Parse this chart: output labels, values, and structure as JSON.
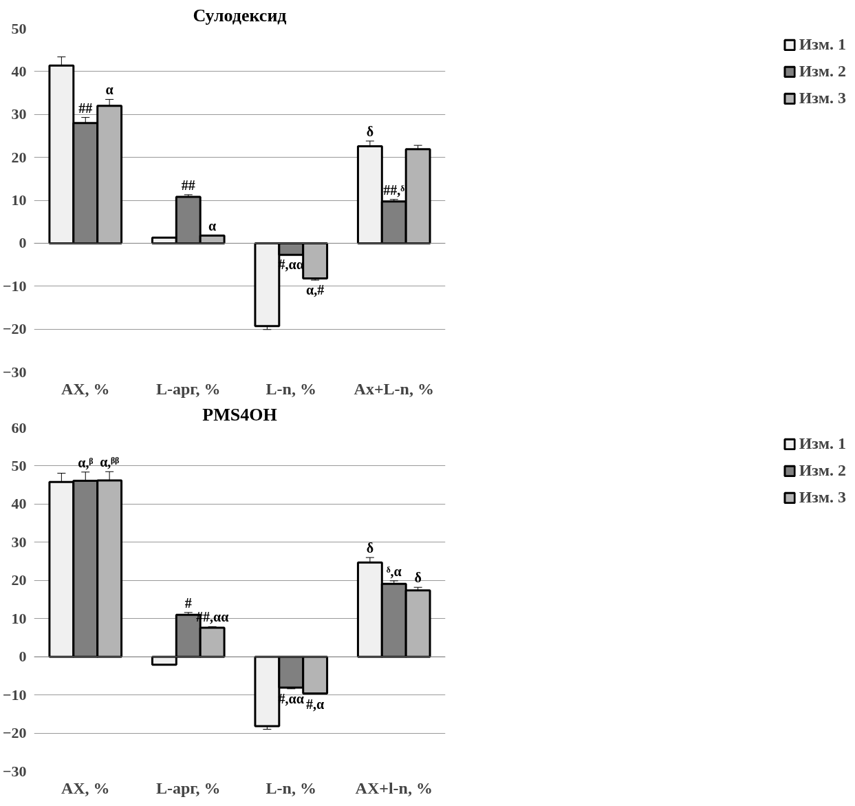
{
  "chart_data": [
    {
      "type": "bar",
      "title": "Сулодексид",
      "categories": [
        "AX, %",
        "L-арг, %",
        "L-n, %",
        "Ax+L-n, %"
      ],
      "series": [
        {
          "name": "Изм. 1",
          "color": "#f0f0f0",
          "values": [
            41.4,
            1.3,
            -19.3,
            22.6
          ],
          "errors": [
            2.0,
            null,
            0.8,
            1.2
          ]
        },
        {
          "name": "Изм. 2",
          "color": "#808080",
          "values": [
            28.0,
            10.8,
            -2.7,
            9.7
          ],
          "errors": [
            1.3,
            0.5,
            null,
            0.5
          ]
        },
        {
          "name": "Изм. 3",
          "color": "#b4b4b4",
          "values": [
            32.0,
            1.8,
            -8.2,
            21.9
          ],
          "errors": [
            1.5,
            null,
            0.4,
            0.9
          ]
        }
      ],
      "ylim": [
        -30,
        50
      ],
      "yticks": [
        -30,
        -20,
        -10,
        0,
        10,
        20,
        30,
        40,
        50
      ],
      "grid": "y",
      "legend": "right",
      "annotations": [
        "##",
        "α",
        "##",
        "α",
        "#,αα",
        "α,#",
        "δ",
        "##,ᵟ"
      ]
    },
    {
      "type": "bar",
      "title": "PMS4OH",
      "categories": [
        "AX, %",
        "L-арг, %",
        "L-n, %",
        "AX+l-n, %"
      ],
      "series": [
        {
          "name": "Изм. 1",
          "color": "#f0f0f0",
          "values": [
            45.8,
            -2.1,
            -18.2,
            24.7
          ],
          "errors": [
            2.3,
            null,
            0.8,
            1.3
          ]
        },
        {
          "name": "Изм. 2",
          "color": "#808080",
          "values": [
            46.1,
            11.0,
            -8.1,
            19.1
          ],
          "errors": [
            2.3,
            0.6,
            0.3,
            0.8
          ]
        },
        {
          "name": "Изм. 3",
          "color": "#b4b4b4",
          "values": [
            46.2,
            7.6,
            -9.6,
            17.4
          ],
          "errors": [
            2.3,
            0.3,
            0.2,
            0.8
          ]
        }
      ],
      "ylim": [
        -30,
        60
      ],
      "yticks": [
        -30,
        -20,
        -10,
        0,
        10,
        20,
        30,
        40,
        50,
        60
      ],
      "grid": "y",
      "legend": "right",
      "annotations": [
        "α,ᵝ",
        "α,ᵝᵝ",
        "#",
        "##,αα",
        "#,αα",
        "#,α",
        "δ",
        "ᵟ,α",
        "δ"
      ]
    }
  ]
}
